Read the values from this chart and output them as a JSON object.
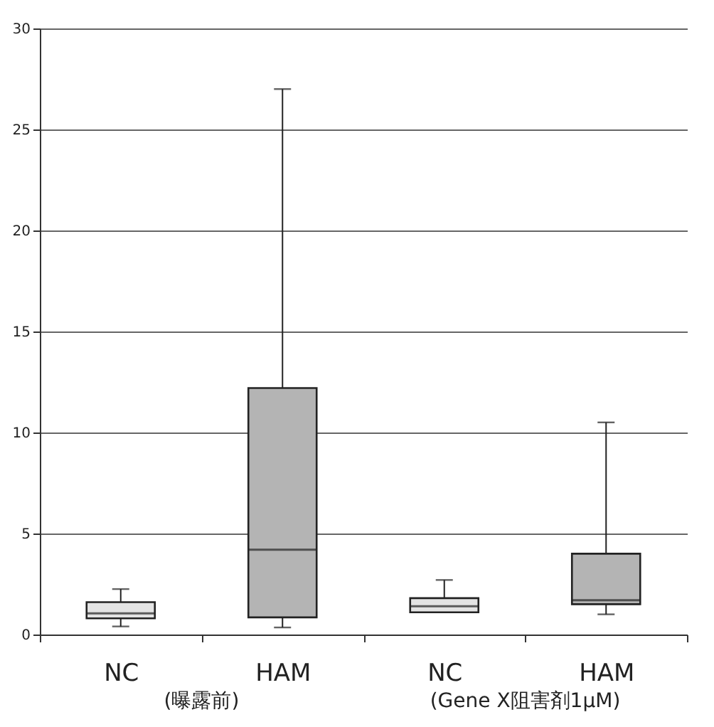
{
  "chart_data": {
    "type": "box",
    "categories": [
      "NC",
      "HAM",
      "NC",
      "HAM"
    ],
    "boxes": [
      {
        "low": 0.4,
        "q1": 0.8,
        "median": 1.05,
        "q3": 1.6,
        "high": 2.25
      },
      {
        "low": 0.35,
        "q1": 0.85,
        "median": 4.2,
        "q3": 12.2,
        "high": 27.0
      },
      {
        "low": 1.1,
        "q1": 1.1,
        "median": 1.4,
        "q3": 1.8,
        "high": 2.7
      },
      {
        "low": 1.0,
        "q1": 1.5,
        "median": 1.7,
        "q3": 4.0,
        "high": 10.5
      }
    ],
    "colors": [
      "#e4e4e4",
      "#b4b4b4",
      "#e4e4e4",
      "#b4b4b4"
    ],
    "annotations": [
      "(曝露前)",
      "(Gene X阻害剤1μM)"
    ],
    "ylim": [
      0,
      30
    ],
    "yticks": [
      0,
      5,
      10,
      15,
      20,
      25,
      30
    ],
    "grid": "y"
  }
}
